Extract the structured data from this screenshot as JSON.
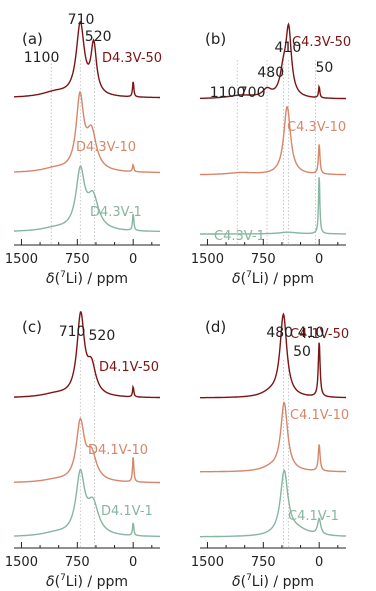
{
  "colors": {
    "dark_red": "#7b1414",
    "orange": "#d6866a",
    "green": "#86b5a0",
    "axis": "#222222",
    "guide": "#bbbbbb"
  },
  "chart_data": [
    {
      "panel": "(a)",
      "type": "line",
      "x_ticks": [
        "1500",
        "750",
        "0"
      ],
      "xlim": [
        1600,
        -360
      ],
      "x_direction": "reversed",
      "xlabel_parts": {
        "delta": "δ(",
        "sup": "7",
        "rest": "Li) / ppm"
      },
      "guide_lines_ppm": [
        1100,
        710,
        520
      ],
      "series": [
        {
          "name": "D4.3V-50",
          "color_key": "dark_red",
          "amp": 1.0,
          "peaks": [
            {
              "c": 710,
              "h": 1.0,
              "w": 65
            },
            {
              "c": 530,
              "h": 0.68,
              "w": 45
            },
            {
              "c": 1050,
              "h": 0.07,
              "w": 220
            },
            {
              "c": 0,
              "h": 0.22,
              "w": 10
            }
          ]
        },
        {
          "name": "D4.3V-10",
          "color_key": "orange",
          "amp": 1.0,
          "peaks": [
            {
              "c": 715,
              "h": 1.0,
              "w": 60
            },
            {
              "c": 560,
              "h": 0.52,
              "w": 80
            },
            {
              "c": 1050,
              "h": 0.05,
              "w": 220
            },
            {
              "c": 0,
              "h": 0.1,
              "w": 10
            }
          ]
        },
        {
          "name": "D4.3V-1",
          "color_key": "green",
          "amp": 1.0,
          "peaks": [
            {
              "c": 710,
              "h": 1.0,
              "w": 70
            },
            {
              "c": 540,
              "h": 0.55,
              "w": 90
            },
            {
              "c": 1050,
              "h": 0.05,
              "w": 220
            },
            {
              "c": 0,
              "h": 0.3,
              "w": 10
            }
          ]
        }
      ],
      "annotations": [
        {
          "text": "710",
          "x_ppm": 700
        },
        {
          "text": "520",
          "x_ppm": 470
        },
        {
          "text": "1100",
          "x_ppm": 1230
        }
      ]
    },
    {
      "panel": "(b)",
      "type": "line",
      "x_ticks": [
        "1500",
        "750",
        "0"
      ],
      "xlim": [
        1600,
        -360
      ],
      "x_direction": "reversed",
      "xlabel_parts": {
        "delta": "δ(",
        "sup": "7",
        "rest": "Li) / ppm"
      },
      "guide_lines_ppm": [
        1100,
        700,
        480,
        410,
        50
      ],
      "series": [
        {
          "name": "C4.3V-50",
          "color_key": "dark_red",
          "amp": 1.0,
          "peaks": [
            {
              "c": 410,
              "h": 1.0,
              "w": 45
            },
            {
              "c": 480,
              "h": 0.35,
              "w": 55
            },
            {
              "c": 700,
              "h": 0.12,
              "w": 70
            },
            {
              "c": 1050,
              "h": 0.05,
              "w": 220
            },
            {
              "c": 0,
              "h": 0.18,
              "w": 10
            }
          ]
        },
        {
          "name": "C4.3V-10",
          "color_key": "orange",
          "amp": 1.0,
          "peaks": [
            {
              "c": 430,
              "h": 1.0,
              "w": 55
            },
            {
              "c": 0,
              "h": 0.45,
              "w": 12
            },
            {
              "c": 1050,
              "h": 0.03,
              "w": 220
            }
          ]
        },
        {
          "name": "C4.3V-1",
          "color_key": "green",
          "amp": 1.0,
          "peaks": [
            {
              "c": 0,
              "h": 1.0,
              "w": 10
            },
            {
              "c": 420,
              "h": 0.03,
              "w": 150
            }
          ]
        }
      ],
      "annotations": [
        {
          "text": "410",
          "x_ppm": 420
        },
        {
          "text": "480",
          "x_ppm": 650
        },
        {
          "text": "700",
          "x_ppm": 900
        },
        {
          "text": "1100",
          "x_ppm": 1230
        },
        {
          "text": "50",
          "x_ppm": -70
        }
      ]
    },
    {
      "panel": "(c)",
      "type": "line",
      "x_ticks": [
        "1500",
        "750",
        "0"
      ],
      "xlim": [
        1600,
        -360
      ],
      "x_direction": "reversed",
      "xlabel_parts": {
        "delta": "δ(",
        "sup": "7",
        "rest": "Li) / ppm"
      },
      "guide_lines_ppm": [
        710,
        520
      ],
      "series": [
        {
          "name": "D4.1V-50",
          "color_key": "dark_red",
          "amp": 1.0,
          "peaks": [
            {
              "c": 705,
              "h": 1.0,
              "w": 60
            },
            {
              "c": 560,
              "h": 0.35,
              "w": 70
            },
            {
              "c": 1050,
              "h": 0.04,
              "w": 220
            },
            {
              "c": 0,
              "h": 0.13,
              "w": 10
            }
          ]
        },
        {
          "name": "D4.1V-10",
          "color_key": "orange",
          "amp": 1.0,
          "peaks": [
            {
              "c": 710,
              "h": 1.0,
              "w": 65
            },
            {
              "c": 560,
              "h": 0.45,
              "w": 80
            },
            {
              "c": 1050,
              "h": 0.04,
              "w": 220
            },
            {
              "c": 0,
              "h": 0.45,
              "w": 10
            }
          ]
        },
        {
          "name": "D4.1V-1",
          "color_key": "green",
          "amp": 1.0,
          "peaks": [
            {
              "c": 710,
              "h": 1.0,
              "w": 70
            },
            {
              "c": 540,
              "h": 0.5,
              "w": 90
            },
            {
              "c": 1050,
              "h": 0.05,
              "w": 220
            },
            {
              "c": 0,
              "h": 0.22,
              "w": 10
            }
          ]
        }
      ],
      "annotations": [
        {
          "text": "710",
          "x_ppm": 820
        },
        {
          "text": "520",
          "x_ppm": 420
        }
      ]
    },
    {
      "panel": "(d)",
      "type": "line",
      "x_ticks": [
        "1500",
        "750",
        "0"
      ],
      "xlim": [
        1600,
        -360
      ],
      "x_direction": "reversed",
      "xlabel_parts": {
        "delta": "δ(",
        "sup": "7",
        "rest": "Li) / ppm"
      },
      "guide_lines_ppm": [
        480,
        410
      ],
      "series": [
        {
          "name": "C4.1V-50",
          "color_key": "dark_red",
          "amp": 1.0,
          "peaks": [
            {
              "c": 480,
              "h": 1.0,
              "w": 55
            },
            {
              "c": 0,
              "h": 0.68,
              "w": 14
            },
            {
              "c": 650,
              "h": 0.05,
              "w": 150
            }
          ]
        },
        {
          "name": "C4.1V-10",
          "color_key": "orange",
          "amp": 1.0,
          "peaks": [
            {
              "c": 470,
              "h": 1.0,
              "w": 55
            },
            {
              "c": 0,
              "h": 0.4,
              "w": 14
            },
            {
              "c": 650,
              "h": 0.05,
              "w": 150
            }
          ]
        },
        {
          "name": "C4.1V-1",
          "color_key": "green",
          "amp": 1.0,
          "peaks": [
            {
              "c": 470,
              "h": 1.0,
              "w": 60
            },
            {
              "c": 0,
              "h": 0.25,
              "w": 25
            },
            {
              "c": 300,
              "h": 0.1,
              "w": 200
            }
          ]
        }
      ],
      "annotations": [
        {
          "text": "480",
          "x_ppm": 530
        },
        {
          "text": "410",
          "x_ppm": 110
        },
        {
          "text": "50",
          "x_ppm": 230
        }
      ]
    }
  ]
}
